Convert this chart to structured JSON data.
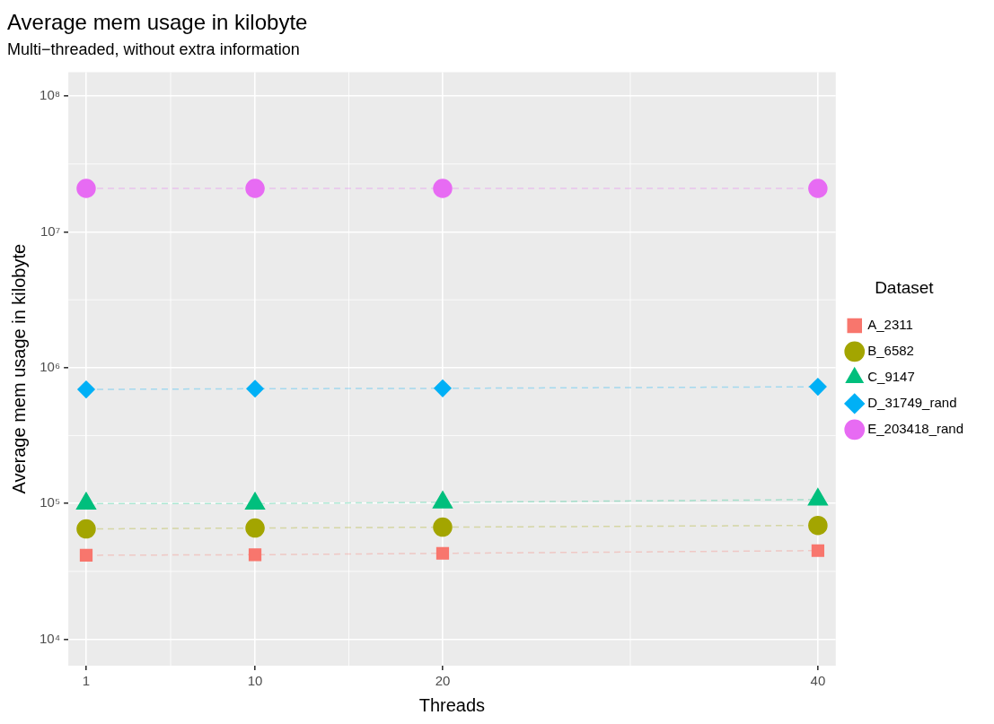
{
  "chart_data": {
    "type": "line",
    "title": "Average mem usage in kilobyte",
    "subtitle": "Multi−threaded, without extra information",
    "xlabel": "Threads",
    "ylabel": "Average mem usage in kilobyte",
    "legend_title": "Dataset",
    "x": [
      1,
      10,
      20,
      40
    ],
    "xlim": [
      0.05,
      40.95
    ],
    "xticks": [
      1,
      10,
      20,
      40
    ],
    "log": "y",
    "ylim": [
      6400,
      150000000
    ],
    "yticks": [
      {
        "value": 10000,
        "label": "10⁴"
      },
      {
        "value": 100000,
        "label": "10⁵"
      },
      {
        "value": 1000000,
        "label": "10⁶"
      },
      {
        "value": 10000000,
        "label": "10⁷"
      },
      {
        "value": 100000000,
        "label": "10⁸"
      }
    ],
    "grid": true,
    "legend": "right",
    "line_style": "dashed",
    "series": [
      {
        "name": "A_2311",
        "color": "#f8766d",
        "marker": "square",
        "values": [
          41600,
          42000,
          43000,
          45000
        ]
      },
      {
        "name": "B_6582",
        "color": "#a3a500",
        "marker": "circle",
        "values": [
          65000,
          66000,
          67000,
          69000
        ]
      },
      {
        "name": "C_9147",
        "color": "#00bf7d",
        "marker": "triangle",
        "values": [
          100000,
          100000,
          102000,
          107000
        ]
      },
      {
        "name": "D_31749_rand",
        "color": "#00b0f6",
        "marker": "diamond",
        "values": [
          692000,
          700000,
          705000,
          724000
        ]
      },
      {
        "name": "E_203418_rand",
        "color": "#e76bf3",
        "marker": "circle",
        "values": [
          20900000,
          20900000,
          20900000,
          20900000
        ]
      }
    ]
  }
}
